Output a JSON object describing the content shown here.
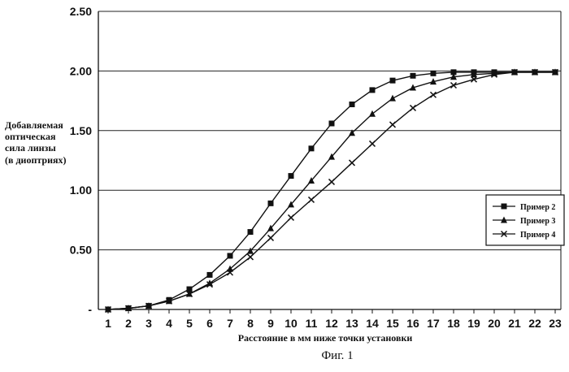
{
  "chart_data": {
    "type": "line",
    "title": "",
    "xlabel": "Расстояние в мм ниже точки установки",
    "ylabel": [
      "Добавляемая",
      "оптическая",
      "сила  линзы",
      "(в диоптриях)"
    ],
    "caption": "Фиг. 1",
    "x": [
      1,
      2,
      3,
      4,
      5,
      6,
      7,
      8,
      9,
      10,
      11,
      12,
      13,
      14,
      15,
      16,
      17,
      18,
      19,
      20,
      21,
      22,
      23
    ],
    "x_tick_labels": [
      "1",
      "2",
      "3",
      "4",
      "5",
      "6",
      "7",
      "8",
      "9",
      "10",
      "11",
      "12",
      "13",
      "14",
      "15",
      "16",
      "17",
      "18",
      "19",
      "20",
      "21",
      "22",
      "23"
    ],
    "y_tick_labels": [
      "-",
      "0.50",
      "1.00",
      "1.50",
      "2.00",
      "2.50"
    ],
    "ylim": [
      0,
      2.5
    ],
    "grid": "horizontal",
    "legend_position": "right",
    "series": [
      {
        "name": "Пример 2",
        "marker": "square",
        "x": [
          1,
          2,
          3,
          4,
          5,
          6,
          7,
          8,
          9,
          10,
          11,
          12,
          13,
          14,
          15,
          16,
          17,
          18,
          19,
          20,
          21,
          22,
          23
        ],
        "values": [
          0.0,
          0.01,
          0.03,
          0.08,
          0.17,
          0.29,
          0.45,
          0.65,
          0.89,
          1.12,
          1.35,
          1.56,
          1.72,
          1.84,
          1.92,
          1.96,
          1.98,
          1.99,
          1.99,
          1.99,
          1.99,
          1.99,
          1.99
        ]
      },
      {
        "name": "Пример 3",
        "marker": "triangle",
        "x": [
          1,
          2,
          3,
          4,
          5,
          6,
          7,
          8,
          9,
          10,
          11,
          12,
          13,
          14,
          15,
          16,
          17,
          18,
          19,
          20,
          21,
          22,
          23
        ],
        "values": [
          0.0,
          0.01,
          0.03,
          0.07,
          0.13,
          0.22,
          0.34,
          0.49,
          0.68,
          0.88,
          1.08,
          1.28,
          1.48,
          1.64,
          1.77,
          1.86,
          1.91,
          1.95,
          1.97,
          1.98,
          1.99,
          1.99,
          1.99
        ]
      },
      {
        "name": "Пример 4",
        "marker": "x",
        "x": [
          1,
          2,
          3,
          4,
          5,
          6,
          7,
          8,
          9,
          10,
          11,
          12,
          13,
          14,
          15,
          16,
          17,
          18,
          19,
          20,
          21,
          22,
          23
        ],
        "values": [
          0.0,
          0.01,
          0.03,
          0.07,
          0.13,
          0.21,
          0.31,
          0.44,
          0.6,
          0.77,
          0.92,
          1.07,
          1.23,
          1.39,
          1.55,
          1.69,
          1.8,
          1.88,
          1.93,
          1.97,
          1.99,
          1.99,
          1.99
        ]
      }
    ]
  }
}
